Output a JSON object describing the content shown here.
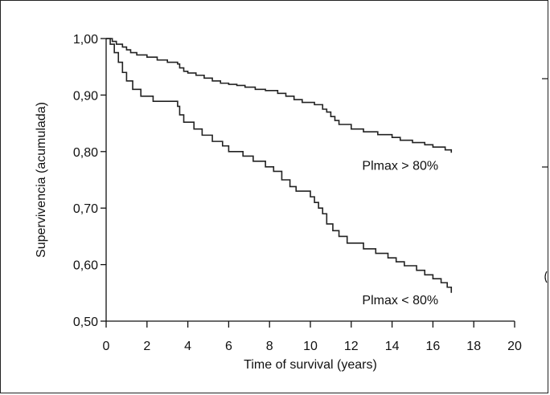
{
  "chart_data": {
    "type": "line",
    "title": "",
    "xlabel": "Time of survival (years)",
    "ylabel": "Supervivencia (acumulada)",
    "xlim": [
      0,
      20
    ],
    "ylim": [
      0.5,
      1.0
    ],
    "x_ticks": [
      0,
      2,
      4,
      6,
      8,
      10,
      12,
      14,
      16,
      18,
      20
    ],
    "y_ticks": [
      0.5,
      0.6,
      0.7,
      0.8,
      0.9,
      1.0
    ],
    "x_tick_labels": [
      "0",
      "2",
      "4",
      "6",
      "8",
      "10",
      "12",
      "14",
      "16",
      "18",
      "20"
    ],
    "y_tick_labels": [
      "0,50",
      "0,60",
      "0,70",
      "0,80",
      "0,90",
      "1,00"
    ],
    "grid": false,
    "legend": "none",
    "series": [
      {
        "name": "Plmax > 80%",
        "label_text": "Plmax > 80%",
        "label_at": {
          "x": 14.4,
          "y": 0.768
        },
        "points": [
          [
            0.0,
            1.0
          ],
          [
            0.3,
            0.995
          ],
          [
            0.5,
            0.99
          ],
          [
            0.8,
            0.985
          ],
          [
            1.0,
            0.98
          ],
          [
            1.2,
            0.975
          ],
          [
            1.5,
            0.971
          ],
          [
            2.0,
            0.967
          ],
          [
            2.5,
            0.962
          ],
          [
            3.0,
            0.958
          ],
          [
            3.5,
            0.955
          ],
          [
            3.6,
            0.948
          ],
          [
            3.8,
            0.942
          ],
          [
            4.0,
            0.939
          ],
          [
            4.4,
            0.935
          ],
          [
            4.8,
            0.93
          ],
          [
            5.2,
            0.925
          ],
          [
            5.6,
            0.921
          ],
          [
            6.0,
            0.919
          ],
          [
            6.4,
            0.917
          ],
          [
            6.8,
            0.914
          ],
          [
            7.3,
            0.91
          ],
          [
            7.8,
            0.908
          ],
          [
            8.4,
            0.903
          ],
          [
            8.8,
            0.898
          ],
          [
            9.2,
            0.892
          ],
          [
            9.6,
            0.887
          ],
          [
            10.2,
            0.883
          ],
          [
            10.6,
            0.875
          ],
          [
            10.8,
            0.87
          ],
          [
            11.0,
            0.862
          ],
          [
            11.2,
            0.855
          ],
          [
            11.4,
            0.848
          ],
          [
            12.0,
            0.84
          ],
          [
            12.6,
            0.835
          ],
          [
            13.3,
            0.83
          ],
          [
            14.0,
            0.825
          ],
          [
            14.4,
            0.82
          ],
          [
            15.0,
            0.816
          ],
          [
            15.6,
            0.812
          ],
          [
            16.0,
            0.808
          ],
          [
            16.6,
            0.803
          ],
          [
            16.9,
            0.798
          ]
        ]
      },
      {
        "name": "Plmax < 80%",
        "label_text": "Plmax < 80%",
        "label_at": {
          "x": 14.4,
          "y": 0.53
        },
        "points": [
          [
            0.0,
            1.0
          ],
          [
            0.2,
            0.99
          ],
          [
            0.4,
            0.975
          ],
          [
            0.6,
            0.958
          ],
          [
            0.8,
            0.94
          ],
          [
            1.0,
            0.925
          ],
          [
            1.3,
            0.91
          ],
          [
            1.7,
            0.898
          ],
          [
            2.3,
            0.889
          ],
          [
            3.5,
            0.88
          ],
          [
            3.6,
            0.865
          ],
          [
            3.8,
            0.852
          ],
          [
            4.3,
            0.84
          ],
          [
            4.7,
            0.829
          ],
          [
            5.2,
            0.818
          ],
          [
            5.7,
            0.81
          ],
          [
            6.0,
            0.8
          ],
          [
            6.7,
            0.792
          ],
          [
            7.2,
            0.783
          ],
          [
            7.8,
            0.773
          ],
          [
            8.2,
            0.765
          ],
          [
            8.6,
            0.75
          ],
          [
            9.0,
            0.738
          ],
          [
            9.3,
            0.73
          ],
          [
            10.0,
            0.72
          ],
          [
            10.2,
            0.71
          ],
          [
            10.4,
            0.7
          ],
          [
            10.6,
            0.69
          ],
          [
            10.8,
            0.672
          ],
          [
            11.1,
            0.66
          ],
          [
            11.4,
            0.65
          ],
          [
            11.8,
            0.638
          ],
          [
            12.6,
            0.628
          ],
          [
            13.2,
            0.62
          ],
          [
            13.8,
            0.612
          ],
          [
            14.2,
            0.605
          ],
          [
            14.6,
            0.598
          ],
          [
            15.2,
            0.59
          ],
          [
            15.6,
            0.582
          ],
          [
            16.0,
            0.575
          ],
          [
            16.4,
            0.568
          ],
          [
            16.7,
            0.56
          ],
          [
            16.9,
            0.55
          ]
        ]
      }
    ]
  }
}
